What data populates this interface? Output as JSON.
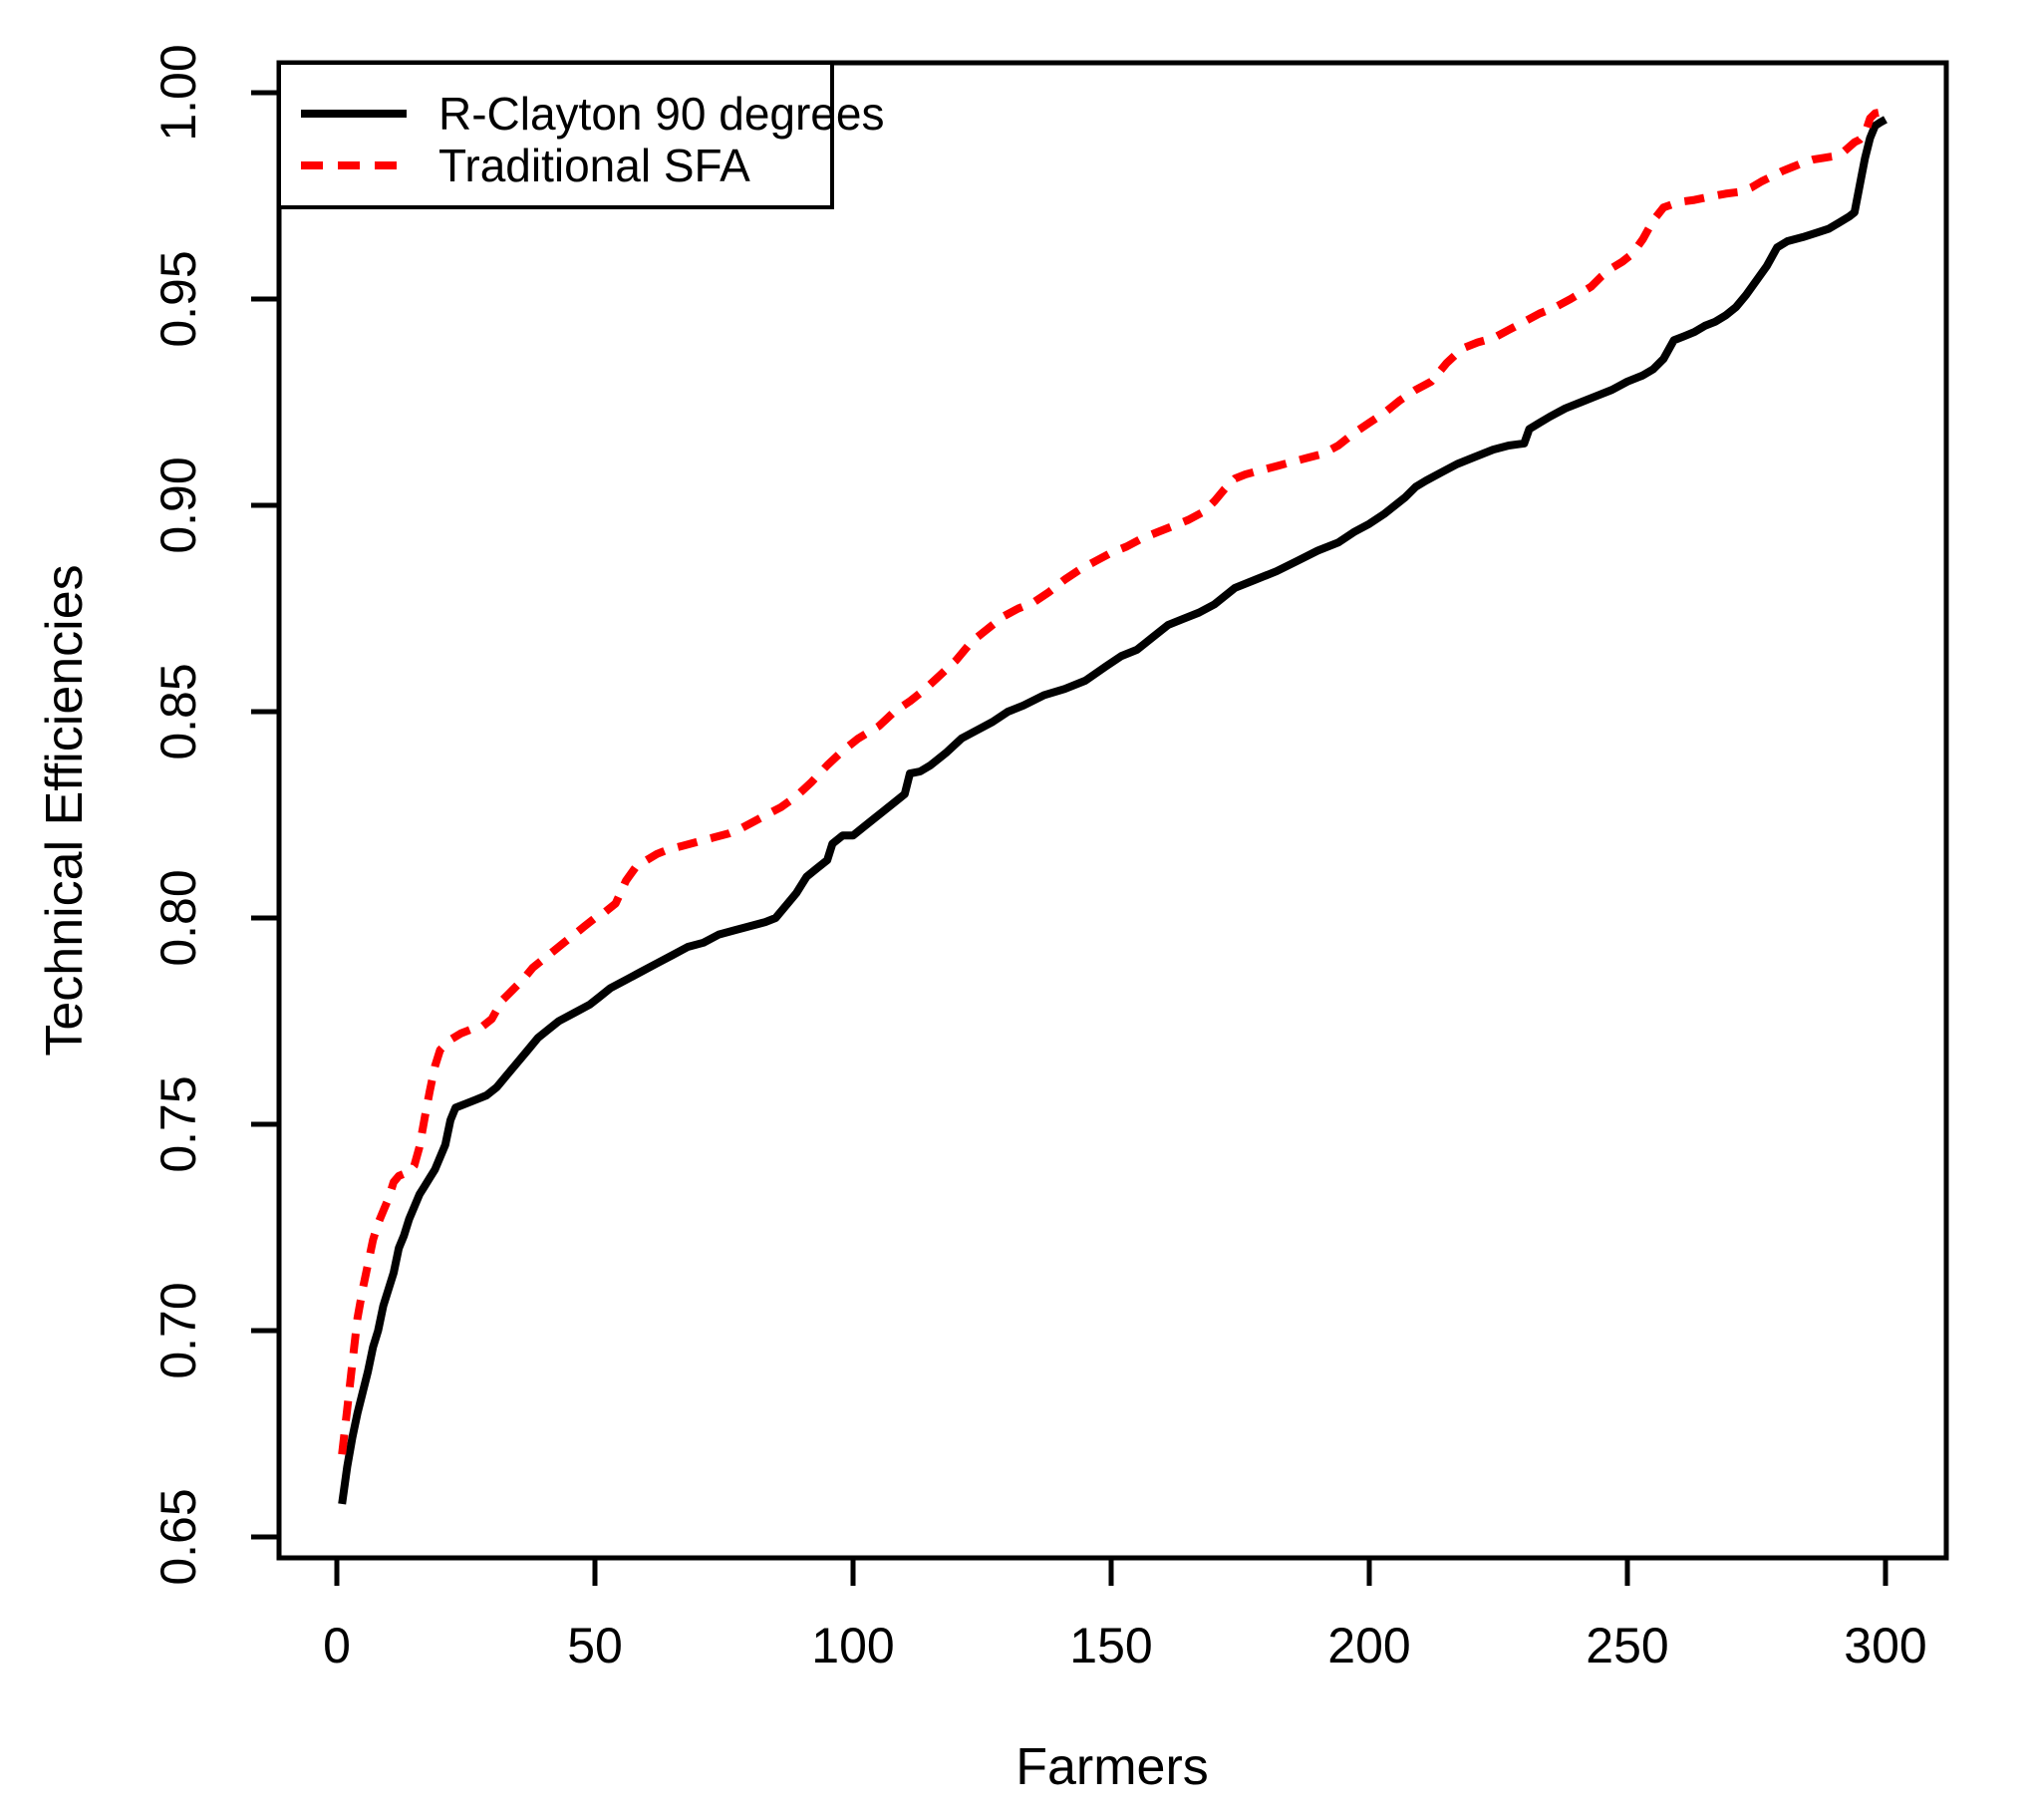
{
  "chart_data": {
    "type": "line",
    "title": "",
    "xlabel": "Farmers",
    "ylabel": "Technical Efficiencies",
    "xlim": [
      0,
      300
    ],
    "ylim": [
      0.65,
      1.0
    ],
    "grid": "off",
    "legend_position": "top-left",
    "x_ticks": [
      0,
      50,
      100,
      150,
      200,
      250,
      300
    ],
    "x_tick_labels": [
      "0",
      "50",
      "100",
      "150",
      "200",
      "250",
      "300"
    ],
    "y_ticks": [
      0.65,
      0.7,
      0.75,
      0.8,
      0.85,
      0.9,
      0.95,
      1.0
    ],
    "y_tick_labels": [
      "0.65",
      "0.70",
      "0.75",
      "0.80",
      "0.85",
      "0.90",
      "0.95",
      "1.00"
    ],
    "colors": {
      "series1": "#000000",
      "series2": "#FF0000",
      "frame": "#000000",
      "background": "#FFFFFF"
    },
    "legend": [
      {
        "label": "R-Clayton 90 degrees",
        "color": "#000000",
        "dash": "solid"
      },
      {
        "label": "Traditional SFA",
        "color": "#FF0000",
        "dash": "dashed"
      }
    ],
    "series": [
      {
        "name": "R-Clayton 90 degrees",
        "color": "#000000",
        "dash": "solid",
        "points": [
          [
            1,
            0.658
          ],
          [
            2,
            0.667
          ],
          [
            3,
            0.674
          ],
          [
            4,
            0.68
          ],
          [
            5,
            0.685
          ],
          [
            6,
            0.69
          ],
          [
            7,
            0.696
          ],
          [
            8,
            0.7
          ],
          [
            9,
            0.706
          ],
          [
            10,
            0.71
          ],
          [
            11,
            0.714
          ],
          [
            12,
            0.72
          ],
          [
            13,
            0.723
          ],
          [
            14,
            0.727
          ],
          [
            15,
            0.73
          ],
          [
            16,
            0.733
          ],
          [
            17,
            0.735
          ],
          [
            18,
            0.737
          ],
          [
            19,
            0.739
          ],
          [
            20,
            0.742
          ],
          [
            21,
            0.745
          ],
          [
            22,
            0.751
          ],
          [
            23,
            0.754
          ],
          [
            25,
            0.755
          ],
          [
            27,
            0.756
          ],
          [
            29,
            0.757
          ],
          [
            31,
            0.759
          ],
          [
            33,
            0.762
          ],
          [
            35,
            0.765
          ],
          [
            37,
            0.768
          ],
          [
            39,
            0.771
          ],
          [
            41,
            0.773
          ],
          [
            43,
            0.775
          ],
          [
            46,
            0.777
          ],
          [
            49,
            0.779
          ],
          [
            51,
            0.781
          ],
          [
            53,
            0.783
          ],
          [
            56,
            0.785
          ],
          [
            59,
            0.787
          ],
          [
            62,
            0.789
          ],
          [
            65,
            0.791
          ],
          [
            68,
            0.793
          ],
          [
            71,
            0.794
          ],
          [
            74,
            0.796
          ],
          [
            77,
            0.797
          ],
          [
            80,
            0.798
          ],
          [
            83,
            0.799
          ],
          [
            85,
            0.8
          ],
          [
            87,
            0.803
          ],
          [
            89,
            0.806
          ],
          [
            91,
            0.81
          ],
          [
            93,
            0.812
          ],
          [
            95,
            0.814
          ],
          [
            96,
            0.818
          ],
          [
            98,
            0.82
          ],
          [
            100,
            0.82
          ],
          [
            102,
            0.822
          ],
          [
            104,
            0.824
          ],
          [
            106,
            0.826
          ],
          [
            108,
            0.828
          ],
          [
            110,
            0.83
          ],
          [
            111,
            0.835
          ],
          [
            113,
            0.8355
          ],
          [
            115,
            0.837
          ],
          [
            118,
            0.84
          ],
          [
            121,
            0.8435
          ],
          [
            124,
            0.8455
          ],
          [
            127,
            0.8475
          ],
          [
            130,
            0.85
          ],
          [
            133,
            0.8515
          ],
          [
            137,
            0.854
          ],
          [
            141,
            0.8555
          ],
          [
            145,
            0.8575
          ],
          [
            149,
            0.861
          ],
          [
            152,
            0.8635
          ],
          [
            155,
            0.865
          ],
          [
            158,
            0.868
          ],
          [
            161,
            0.871
          ],
          [
            164,
            0.8725
          ],
          [
            167,
            0.874
          ],
          [
            170,
            0.876
          ],
          [
            174,
            0.88
          ],
          [
            178,
            0.882
          ],
          [
            182,
            0.884
          ],
          [
            186,
            0.8865
          ],
          [
            190,
            0.889
          ],
          [
            194,
            0.891
          ],
          [
            197,
            0.8935
          ],
          [
            200,
            0.8955
          ],
          [
            203,
            0.898
          ],
          [
            205,
            0.9
          ],
          [
            207,
            0.902
          ],
          [
            209,
            0.9045
          ],
          [
            211,
            0.906
          ],
          [
            214,
            0.908
          ],
          [
            217,
            0.91
          ],
          [
            220,
            0.9115
          ],
          [
            224,
            0.9135
          ],
          [
            227,
            0.9145
          ],
          [
            230,
            0.915
          ],
          [
            231,
            0.9185
          ],
          [
            233,
            0.92
          ],
          [
            235,
            0.9215
          ],
          [
            238,
            0.9235
          ],
          [
            241,
            0.925
          ],
          [
            244,
            0.9265
          ],
          [
            247,
            0.928
          ],
          [
            250,
            0.93
          ],
          [
            253,
            0.9315
          ],
          [
            255,
            0.933
          ],
          [
            257,
            0.9355
          ],
          [
            259,
            0.94
          ],
          [
            261,
            0.941
          ],
          [
            263,
            0.942
          ],
          [
            265,
            0.9435
          ],
          [
            267,
            0.9445
          ],
          [
            269,
            0.946
          ],
          [
            271,
            0.948
          ],
          [
            273,
            0.951
          ],
          [
            275,
            0.9545
          ],
          [
            277,
            0.958
          ],
          [
            279,
            0.9625
          ],
          [
            281,
            0.964
          ],
          [
            284,
            0.965
          ],
          [
            287,
            0.9662
          ],
          [
            289,
            0.967
          ],
          [
            291,
            0.9685
          ],
          [
            293,
            0.97
          ],
          [
            294,
            0.971
          ],
          [
            295,
            0.9775
          ],
          [
            296,
            0.984
          ],
          [
            297,
            0.989
          ],
          [
            298,
            0.992
          ],
          [
            299,
            0.9928
          ],
          [
            300,
            0.9935
          ]
        ]
      },
      {
        "name": "Traditional SFA",
        "color": "#FF0000",
        "dash": "dashed",
        "points": [
          [
            1,
            0.67
          ],
          [
            2,
            0.681
          ],
          [
            3,
            0.692
          ],
          [
            4,
            0.703
          ],
          [
            5,
            0.71
          ],
          [
            6,
            0.716
          ],
          [
            7,
            0.722
          ],
          [
            8,
            0.726
          ],
          [
            9,
            0.729
          ],
          [
            10,
            0.732
          ],
          [
            11,
            0.736
          ],
          [
            12,
            0.7375
          ],
          [
            13,
            0.738
          ],
          [
            14,
            0.7385
          ],
          [
            15,
            0.74
          ],
          [
            16,
            0.7445
          ],
          [
            17,
            0.7515
          ],
          [
            18,
            0.758
          ],
          [
            19,
            0.764
          ],
          [
            20,
            0.768
          ],
          [
            22,
            0.7705
          ],
          [
            24,
            0.772
          ],
          [
            26,
            0.773
          ],
          [
            28,
            0.7735
          ],
          [
            30,
            0.7755
          ],
          [
            32,
            0.78
          ],
          [
            34,
            0.7825
          ],
          [
            36,
            0.785
          ],
          [
            38,
            0.788
          ],
          [
            40,
            0.79
          ],
          [
            42,
            0.792
          ],
          [
            44,
            0.794
          ],
          [
            46,
            0.796
          ],
          [
            48,
            0.798
          ],
          [
            50,
            0.8
          ],
          [
            52,
            0.8015
          ],
          [
            54,
            0.8035
          ],
          [
            56,
            0.809
          ],
          [
            58,
            0.8125
          ],
          [
            60,
            0.814
          ],
          [
            62,
            0.8155
          ],
          [
            64,
            0.8165
          ],
          [
            67,
            0.8175
          ],
          [
            70,
            0.8185
          ],
          [
            73,
            0.8195
          ],
          [
            76,
            0.8205
          ],
          [
            78,
            0.8215
          ],
          [
            81,
            0.8235
          ],
          [
            84,
            0.8255
          ],
          [
            86,
            0.8268
          ],
          [
            89,
            0.8295
          ],
          [
            92,
            0.833
          ],
          [
            95,
            0.837
          ],
          [
            98,
            0.8405
          ],
          [
            101,
            0.8435
          ],
          [
            105,
            0.8465
          ],
          [
            108,
            0.85
          ],
          [
            111,
            0.8525
          ],
          [
            114,
            0.8555
          ],
          [
            117,
            0.859
          ],
          [
            120,
            0.8625
          ],
          [
            123,
            0.867
          ],
          [
            126,
            0.87
          ],
          [
            129,
            0.873
          ],
          [
            132,
            0.875
          ],
          [
            135,
            0.8765
          ],
          [
            138,
            0.879
          ],
          [
            141,
            0.882
          ],
          [
            144,
            0.8845
          ],
          [
            147,
            0.8865
          ],
          [
            150,
            0.8885
          ],
          [
            153,
            0.89
          ],
          [
            156,
            0.892
          ],
          [
            159,
            0.8935
          ],
          [
            162,
            0.895
          ],
          [
            165,
            0.8965
          ],
          [
            168,
            0.8985
          ],
          [
            170,
            0.901
          ],
          [
            172,
            0.904
          ],
          [
            174,
            0.9065
          ],
          [
            176,
            0.9075
          ],
          [
            179,
            0.9085
          ],
          [
            182,
            0.9095
          ],
          [
            185,
            0.9105
          ],
          [
            188,
            0.9115
          ],
          [
            191,
            0.9125
          ],
          [
            194,
            0.9145
          ],
          [
            197,
            0.9175
          ],
          [
            200,
            0.92
          ],
          [
            203,
            0.9225
          ],
          [
            206,
            0.9255
          ],
          [
            209,
            0.928
          ],
          [
            212,
            0.93
          ],
          [
            215,
            0.9345
          ],
          [
            218,
            0.938
          ],
          [
            221,
            0.9395
          ],
          [
            224,
            0.9405
          ],
          [
            227,
            0.9425
          ],
          [
            230,
            0.9445
          ],
          [
            233,
            0.9465
          ],
          [
            236,
            0.948
          ],
          [
            239,
            0.95
          ],
          [
            241,
            0.9515
          ],
          [
            243,
            0.953
          ],
          [
            245,
            0.9555
          ],
          [
            247,
            0.9575
          ],
          [
            249,
            0.959
          ],
          [
            251,
            0.961
          ],
          [
            253,
            0.9645
          ],
          [
            255,
            0.969
          ],
          [
            257,
            0.9722
          ],
          [
            260,
            0.9735
          ],
          [
            263,
            0.974
          ],
          [
            266,
            0.9748
          ],
          [
            269,
            0.9755
          ],
          [
            272,
            0.976
          ],
          [
            274,
            0.977
          ],
          [
            276,
            0.9785
          ],
          [
            278,
            0.9797
          ],
          [
            280,
            0.981
          ],
          [
            282,
            0.982
          ],
          [
            284,
            0.983
          ],
          [
            286,
            0.9838
          ],
          [
            288,
            0.9842
          ],
          [
            290,
            0.9846
          ],
          [
            292,
            0.9858
          ],
          [
            294,
            0.988
          ],
          [
            295,
            0.9886
          ],
          [
            296,
            0.99
          ],
          [
            297,
            0.9938
          ],
          [
            298,
            0.995
          ],
          [
            300,
            0.9955
          ]
        ]
      }
    ]
  }
}
